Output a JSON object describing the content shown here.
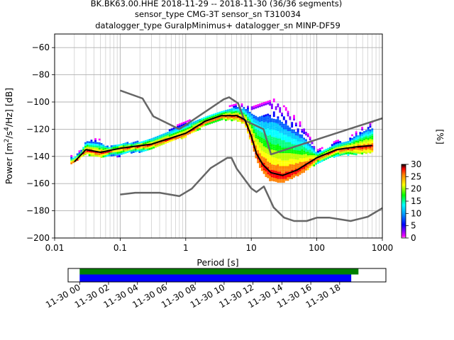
{
  "title": {
    "line1": "BK.BK63.00.HHE   2018-11-29 -- 2018-11-30  (36/36 segments)",
    "line2": "sensor_type CMG-3T sensor_sn T310034",
    "line3": "datalogger_type GuralpMinimus+ datalogger_sn MINP-DF59"
  },
  "colorbar": {
    "label": "[%]",
    "ticks": [
      "0",
      "5",
      "10",
      "15",
      "20",
      "25",
      "30"
    ],
    "range": [
      0,
      30
    ],
    "colors": [
      "#ffffff",
      "#ff00ff",
      "#0000ff",
      "#00ffff",
      "#00ff00",
      "#ffff00",
      "#ff0000",
      "#000000"
    ]
  },
  "chart_data": {
    "type": "line",
    "plot_kind": "PPSD probabilistic power spectral density",
    "xlabel": "Period [s]",
    "ylabel_parts": [
      "Power [m",
      "2",
      "/s",
      "4",
      "/Hz] [dB]"
    ],
    "x_scale": "log",
    "xlim": [
      0.01,
      1000
    ],
    "ylim": [
      -200,
      -50
    ],
    "grid": true,
    "x_tick_labels": [
      "0.01",
      "0.1",
      "1",
      "10",
      "100",
      "1000"
    ],
    "x_ticks": [
      0.01,
      0.1,
      1,
      10,
      100,
      1000
    ],
    "y_ticks": [
      -60,
      -80,
      -100,
      -120,
      -140,
      -160,
      -180,
      -200
    ],
    "y_tick_labels": [
      "−60",
      "−80",
      "−100",
      "−120",
      "−140",
      "−160",
      "−180",
      "−200"
    ],
    "series": [
      {
        "role": "noise-model-high",
        "color": "#666666",
        "points": [
          [
            0.1,
            -91.5
          ],
          [
            0.22,
            -97.4
          ],
          [
            0.32,
            -110.5
          ],
          [
            0.8,
            -120
          ],
          [
            3.8,
            -98
          ],
          [
            4.6,
            -96.5
          ],
          [
            6.3,
            -101
          ],
          [
            7.9,
            -113.5
          ],
          [
            15.4,
            -120
          ],
          [
            20,
            -138.5
          ],
          [
            1000,
            -112
          ]
        ]
      },
      {
        "role": "noise-model-low",
        "color": "#666666",
        "points": [
          [
            0.1,
            -168
          ],
          [
            0.17,
            -166.7
          ],
          [
            0.4,
            -166.7
          ],
          [
            0.8,
            -169.2
          ],
          [
            1.24,
            -163.7
          ],
          [
            2.4,
            -148.6
          ],
          [
            4.3,
            -141.1
          ],
          [
            5.0,
            -141.1
          ],
          [
            6.0,
            -149
          ],
          [
            10,
            -163.5
          ],
          [
            12,
            -166.2
          ],
          [
            15.6,
            -162.1
          ],
          [
            21.9,
            -177.5
          ],
          [
            31.6,
            -185
          ],
          [
            45,
            -187.5
          ],
          [
            70,
            -187.5
          ],
          [
            101,
            -185
          ],
          [
            154,
            -185
          ],
          [
            328,
            -187.5
          ],
          [
            600,
            -184.4
          ],
          [
            1000,
            -178
          ]
        ]
      },
      {
        "role": "mode",
        "color": "#000000",
        "points": [
          [
            0.02,
            -144
          ],
          [
            0.03,
            -135
          ],
          [
            0.05,
            -137
          ],
          [
            0.1,
            -134
          ],
          [
            0.3,
            -131
          ],
          [
            1,
            -123
          ],
          [
            2,
            -114
          ],
          [
            3.5,
            -110
          ],
          [
            6,
            -110
          ],
          [
            8,
            -113
          ],
          [
            10,
            -125
          ],
          [
            12,
            -138
          ],
          [
            15,
            -146
          ],
          [
            20,
            -152
          ],
          [
            30,
            -154
          ],
          [
            50,
            -150
          ],
          [
            100,
            -141
          ],
          [
            200,
            -135
          ],
          [
            400,
            -133
          ],
          [
            700,
            -132
          ]
        ]
      },
      {
        "role": "density-upper-edge",
        "color": "#8000ff",
        "points": [
          [
            0.018,
            -139
          ],
          [
            0.025,
            -135
          ],
          [
            0.03,
            -126
          ],
          [
            0.05,
            -127
          ],
          [
            0.07,
            -132
          ],
          [
            0.1,
            -131
          ],
          [
            0.3,
            -124
          ],
          [
            1,
            -114
          ],
          [
            2,
            -108
          ],
          [
            3.5,
            -104
          ],
          [
            6,
            -101
          ],
          [
            8,
            -101
          ],
          [
            10,
            -102
          ],
          [
            15,
            -99
          ],
          [
            20,
            -97
          ],
          [
            25,
            -98
          ],
          [
            40,
            -107
          ],
          [
            60,
            -116
          ],
          [
            80,
            -126
          ],
          [
            100,
            -135
          ],
          [
            200,
            -128
          ],
          [
            300,
            -126
          ],
          [
            500,
            -118
          ],
          [
            700,
            -114
          ]
        ]
      },
      {
        "role": "density-lower-edge",
        "color": "#ff00ff",
        "points": [
          [
            0.018,
            -145
          ],
          [
            0.03,
            -138
          ],
          [
            0.05,
            -140
          ],
          [
            0.1,
            -140
          ],
          [
            0.3,
            -134
          ],
          [
            1,
            -125
          ],
          [
            2,
            -117
          ],
          [
            3.5,
            -113
          ],
          [
            6,
            -113
          ],
          [
            8,
            -116
          ],
          [
            10,
            -130
          ],
          [
            12,
            -142
          ],
          [
            15,
            -152
          ],
          [
            20,
            -158
          ],
          [
            30,
            -159
          ],
          [
            50,
            -154
          ],
          [
            100,
            -145
          ],
          [
            200,
            -139
          ],
          [
            400,
            -138
          ],
          [
            700,
            -137
          ]
        ]
      }
    ]
  },
  "timeline": {
    "tick_labels": [
      "11-30 00",
      "11-30 02",
      "11-30 04",
      "11-30 06",
      "11-30 08",
      "11-30 10",
      "11-30 12",
      "11-30 14",
      "11-30 16",
      "11-30 18"
    ],
    "range_hours": [
      -0.8,
      21.2
    ],
    "coverage_bars": [
      {
        "name": "data-availability",
        "start": 0,
        "end": 19.3,
        "color": "#008000"
      },
      {
        "name": "ppsd-processed",
        "start": 0,
        "end": 18.8,
        "color": "#0000ff"
      }
    ]
  }
}
